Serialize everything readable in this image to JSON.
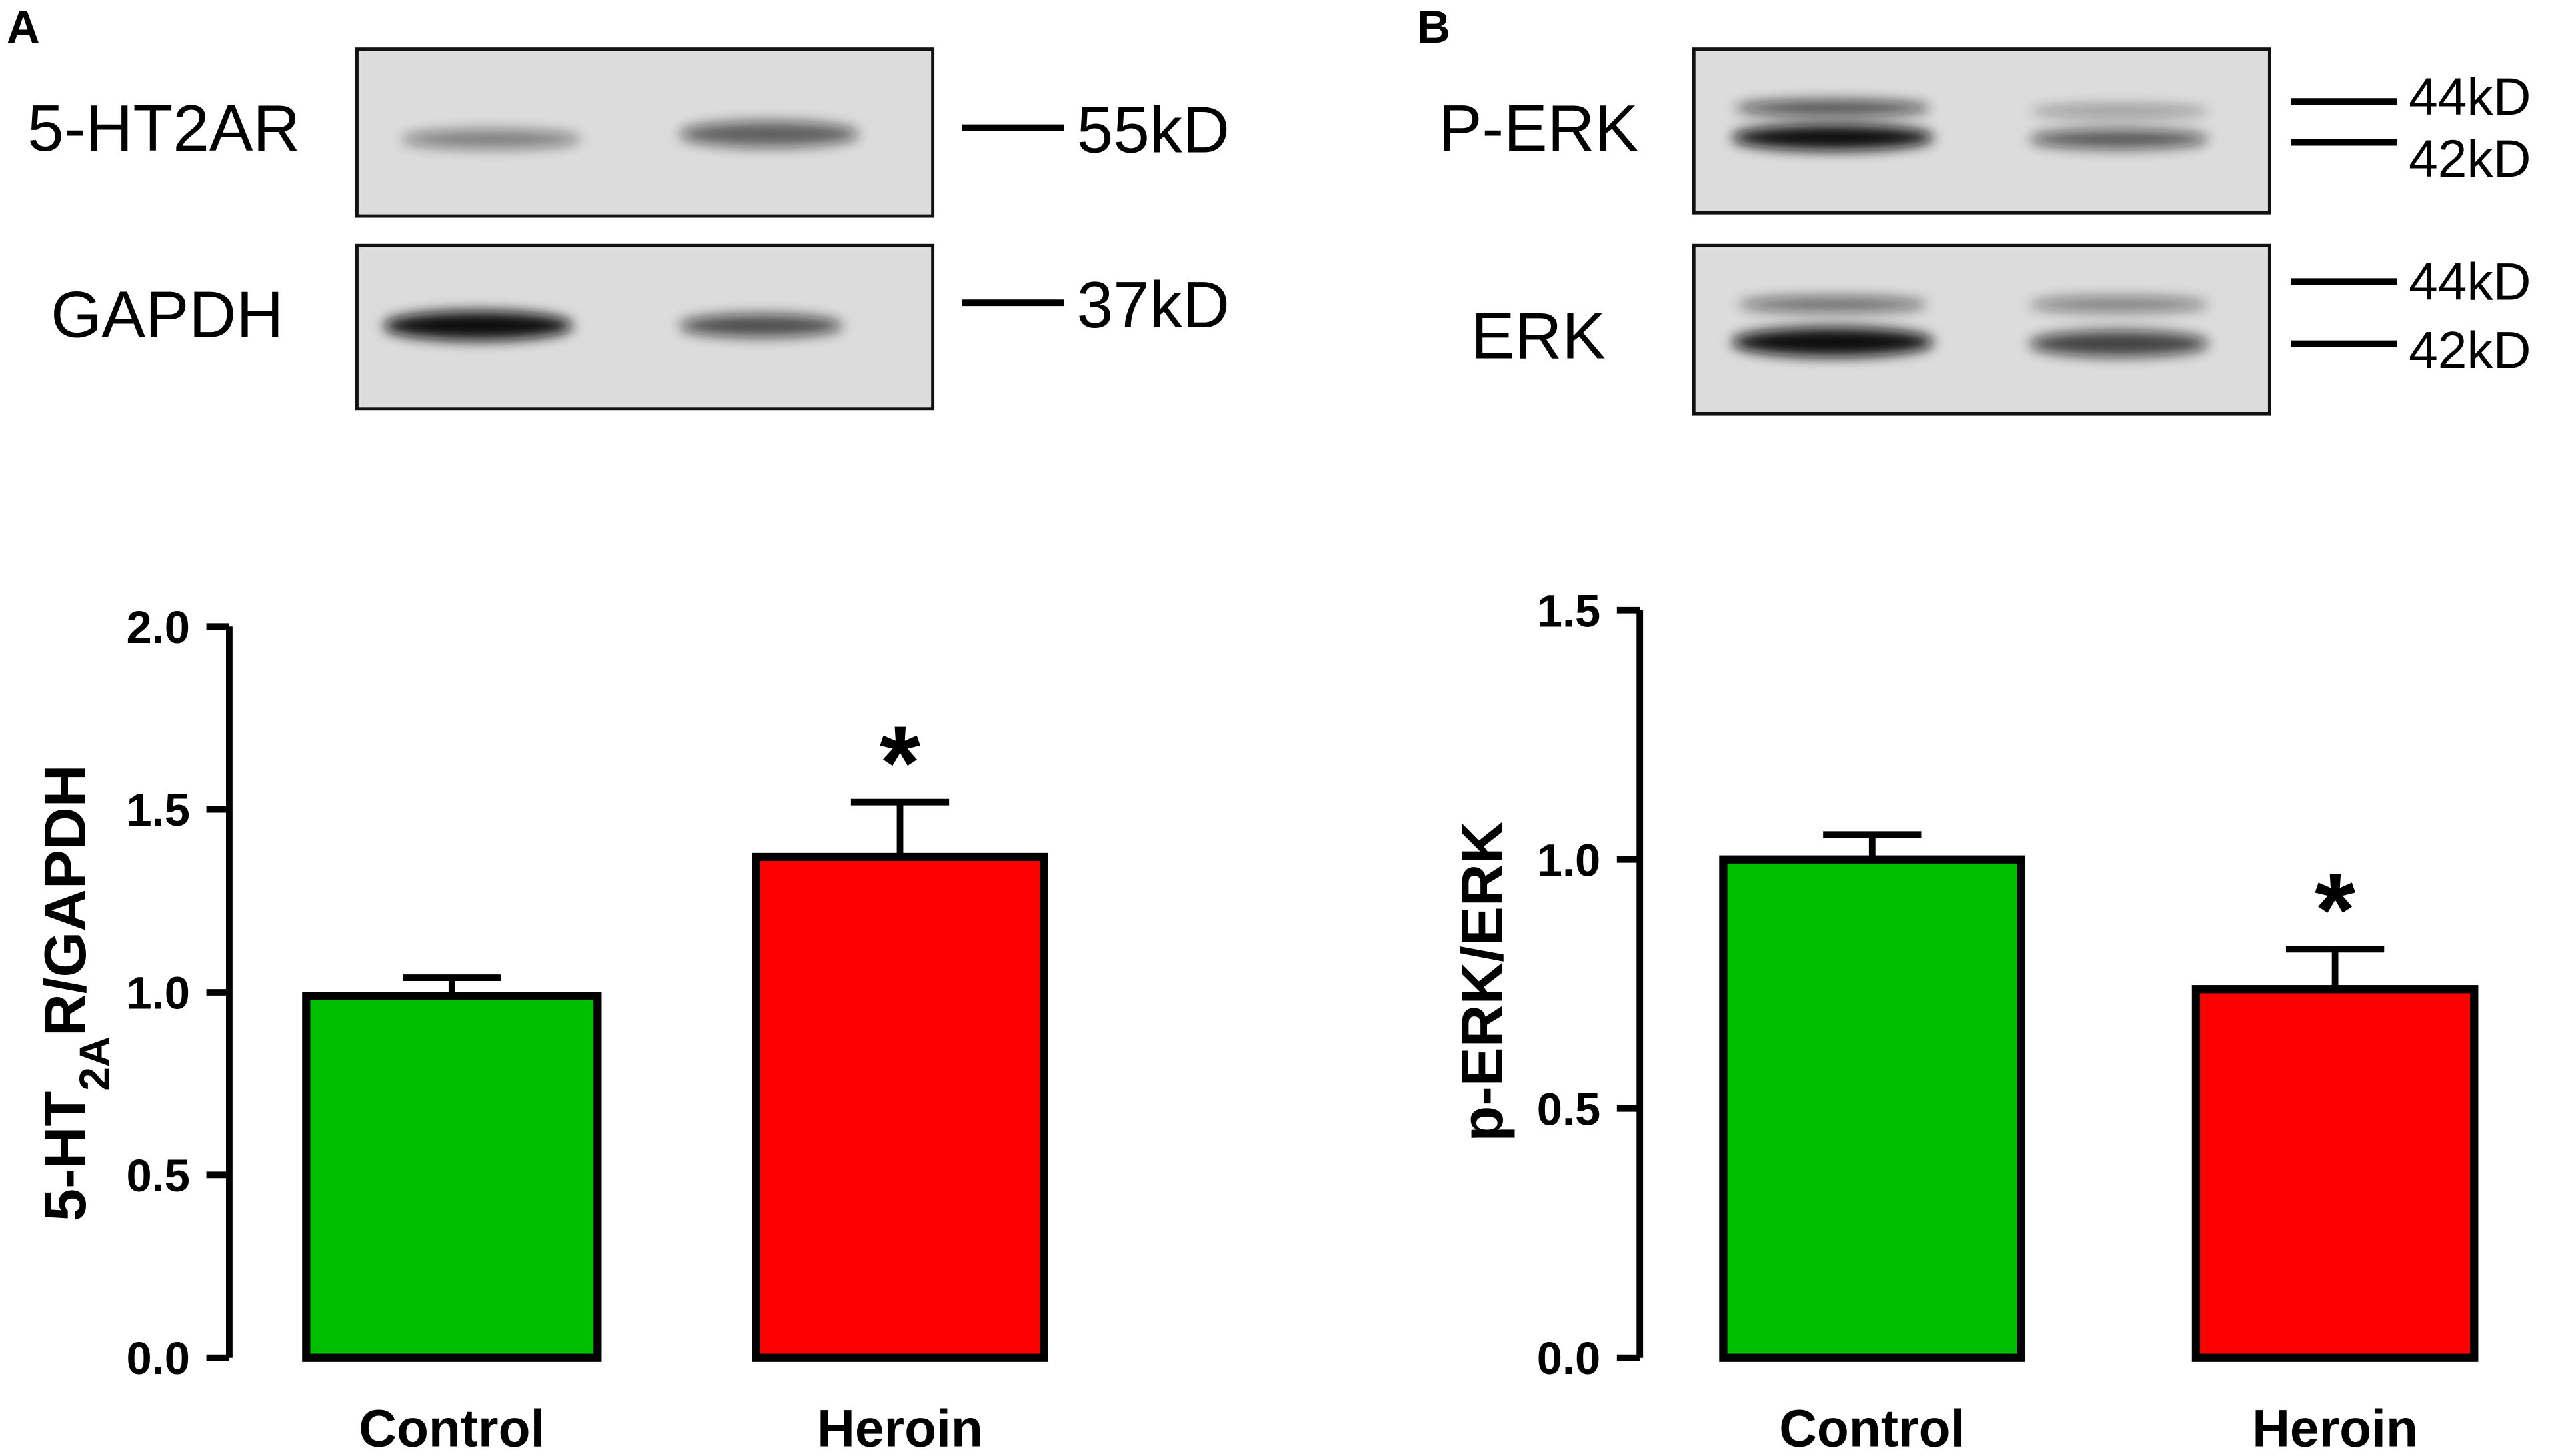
{
  "panel_labels": [
    "A",
    "B"
  ],
  "blots": [
    {
      "rows": [
        {
          "protein": "5-HT2AR",
          "markers": [
            "55kD"
          ]
        },
        {
          "protein": "GAPDH",
          "markers": [
            "37kD"
          ]
        }
      ]
    },
    {
      "rows": [
        {
          "protein": "P-ERK",
          "markers": [
            "44kD",
            "42kD"
          ]
        },
        {
          "protein": "ERK",
          "markers": [
            "44kD",
            "42kD"
          ]
        }
      ]
    }
  ],
  "chart_data": [
    {
      "type": "bar",
      "y_label": [
        "5-HT",
        "2A",
        "R/GAPDH"
      ],
      "categories": [
        "Control",
        "Heroin"
      ],
      "series": [
        {
          "values": [
            0.99,
            1.37
          ],
          "errors": [
            0.05,
            0.15
          ],
          "colors": [
            "#00bf00",
            "#ff0000"
          ]
        }
      ],
      "annotations": [
        {
          "category": 1,
          "text": "*"
        }
      ],
      "ylim": [
        0,
        2
      ],
      "yticks": [
        {
          "value": 0,
          "label": "0.0"
        },
        0.5,
        {
          "value": 1,
          "label": "1.0"
        },
        1.5,
        {
          "value": 2,
          "label": "2.0"
        }
      ]
    },
    {
      "type": "bar",
      "y_label": [
        "p-ERK/ERK"
      ],
      "categories": [
        "Control",
        "Heroin"
      ],
      "series": [
        {
          "values": [
            1.0,
            0.74
          ],
          "errors": [
            0.05,
            0.08
          ],
          "colors": [
            "#00bf00",
            "#ff0000"
          ]
        }
      ],
      "annotations": [
        {
          "category": 1,
          "text": "*"
        }
      ],
      "ylim": [
        0,
        1.5
      ],
      "yticks": [
        {
          "value": 0,
          "label": "0.0"
        },
        0.5,
        {
          "value": 1,
          "label": "1.0"
        },
        1.5
      ]
    }
  ]
}
